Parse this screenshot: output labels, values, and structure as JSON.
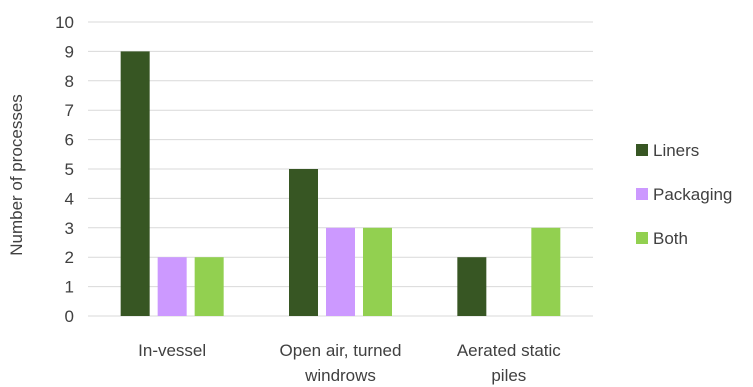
{
  "chart_data": {
    "type": "bar",
    "title": "",
    "xlabel": "",
    "ylabel": "Number of processes",
    "ylim": [
      0,
      10
    ],
    "yticks": [
      0,
      1,
      2,
      3,
      4,
      5,
      6,
      7,
      8,
      9,
      10
    ],
    "grid": true,
    "legend_position": "right",
    "categories": [
      [
        "In-vessel"
      ],
      [
        "Open air, turned",
        "windrows"
      ],
      [
        "Aerated static",
        "piles"
      ]
    ],
    "series": [
      {
        "name": "Liners",
        "color": "#375623",
        "values": [
          9,
          5,
          2
        ]
      },
      {
        "name": "Packaging",
        "color": "#CC99FF",
        "values": [
          2,
          3,
          0
        ]
      },
      {
        "name": "Both",
        "color": "#92D050",
        "values": [
          2,
          3,
          3
        ]
      }
    ]
  }
}
